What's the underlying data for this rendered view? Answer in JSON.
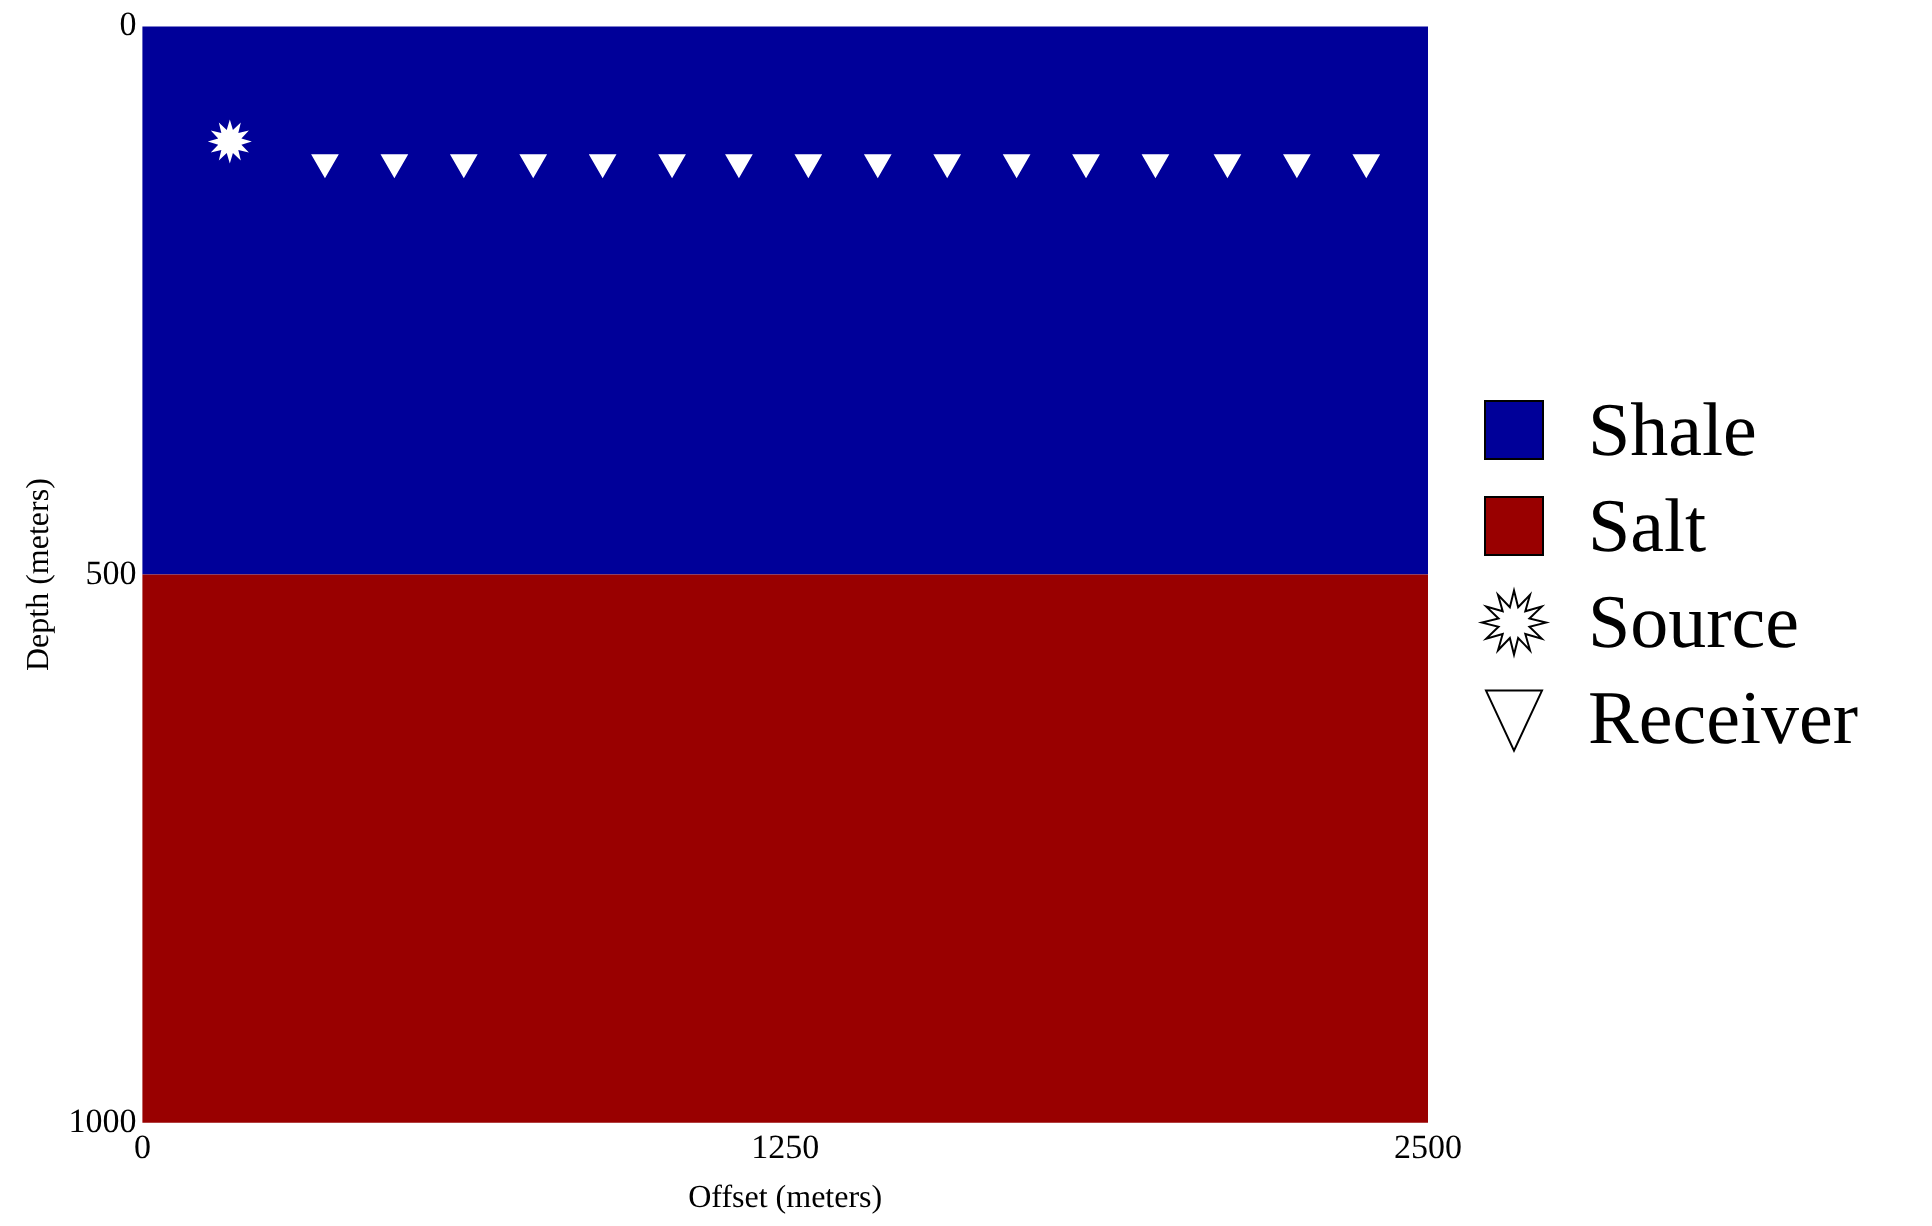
{
  "chart_data": {
    "type": "scatter",
    "xlabel": "Offset (meters)",
    "ylabel": "Depth (meters)",
    "xlim": [
      0,
      2500
    ],
    "xticks": [
      0,
      1250,
      2500
    ],
    "ylim": [
      1000,
      0
    ],
    "yticks": [
      0,
      500,
      1000
    ],
    "grid": false,
    "legend": "right",
    "bands": [
      {
        "axis": "y",
        "from": 0,
        "to": 500,
        "label": "Shale",
        "color": "#000099"
      },
      {
        "axis": "y",
        "from": 500,
        "to": 1000,
        "label": "Salt",
        "color": "#990000"
      }
    ],
    "series": [
      {
        "name": "Source",
        "color": "#ffffff",
        "marker": "star",
        "x": [
          170
        ],
        "values": [
          105
        ]
      },
      {
        "name": "Receiver",
        "color": "#ffffff",
        "marker": "triangle",
        "x": [
          355,
          490,
          625,
          760,
          895,
          1030,
          1160,
          1295,
          1430,
          1565,
          1700,
          1835,
          1970,
          2110,
          2245,
          2380
        ],
        "values": [
          124,
          124,
          124,
          124,
          124,
          124,
          124,
          124,
          124,
          124,
          124,
          124,
          124,
          124,
          124,
          124
        ]
      }
    ]
  }
}
